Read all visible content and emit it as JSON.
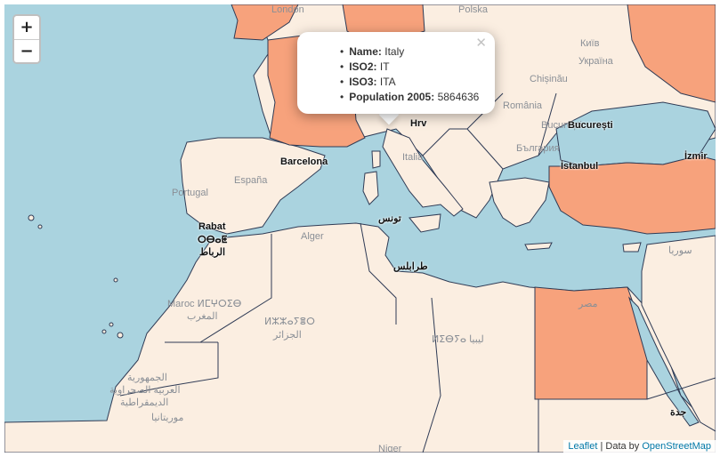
{
  "map": {
    "zoom_in_label": "+",
    "zoom_out_label": "−",
    "colors": {
      "water": "#aad3df",
      "land": "#fbeee1",
      "highlight": "#f7a27c",
      "border": "#2f3b55"
    },
    "popup": {
      "close_label": "✕",
      "fields": [
        {
          "key": "Name:",
          "value": "Italy"
        },
        {
          "key": "ISO2:",
          "value": "IT"
        },
        {
          "key": "ISO3:",
          "value": "ITA"
        },
        {
          "key": "Population 2005:",
          "value": "5864636"
        }
      ]
    },
    "place_labels": {
      "london": "London",
      "polska": "Polska",
      "kyiv": "Київ",
      "ukraina": "Україна",
      "chisinau": "Chișinău",
      "romania": "România",
      "bucuresti_grey": "București",
      "bucuresti": "București",
      "bulgaria": "България",
      "istanbul": "İstanbul",
      "barcelona": "Barcelona",
      "espana": "España",
      "portugal": "Portugal",
      "italia": "Italia",
      "hrvatska": "Hrv",
      "rabat": "Rabat",
      "rabat_tif": "ⵔⴱⴰⵟ",
      "rabat_ar": "الرباط",
      "alger": "Alger",
      "tunis": "تونس",
      "tripoli": "طرابلس",
      "maroc": "Maroc ⵍⵎⵖⵔⵉⴱ",
      "maroc_ar": "المغرب",
      "algeria_tif": "ⵍⵣⵣⴰⵢⴻⵔ",
      "algeria_ar": "الجزائر",
      "libya": "ⵍⵉⴱⵢⴰ ليبيا",
      "egypt": "مصر",
      "syria": "سوريا",
      "mauritania": "موريتانيا",
      "sahara1": "الجمهورية",
      "sahara2": "العربية الصحراوية",
      "sahara3": "الديمقراطية",
      "jeddah": "جدة",
      "niger": "Niger",
      "turkey_coast": "İzmir"
    },
    "attribution": {
      "leaflet": "Leaflet",
      "separator": " | Data by ",
      "osm": "OpenStreetMap"
    }
  }
}
